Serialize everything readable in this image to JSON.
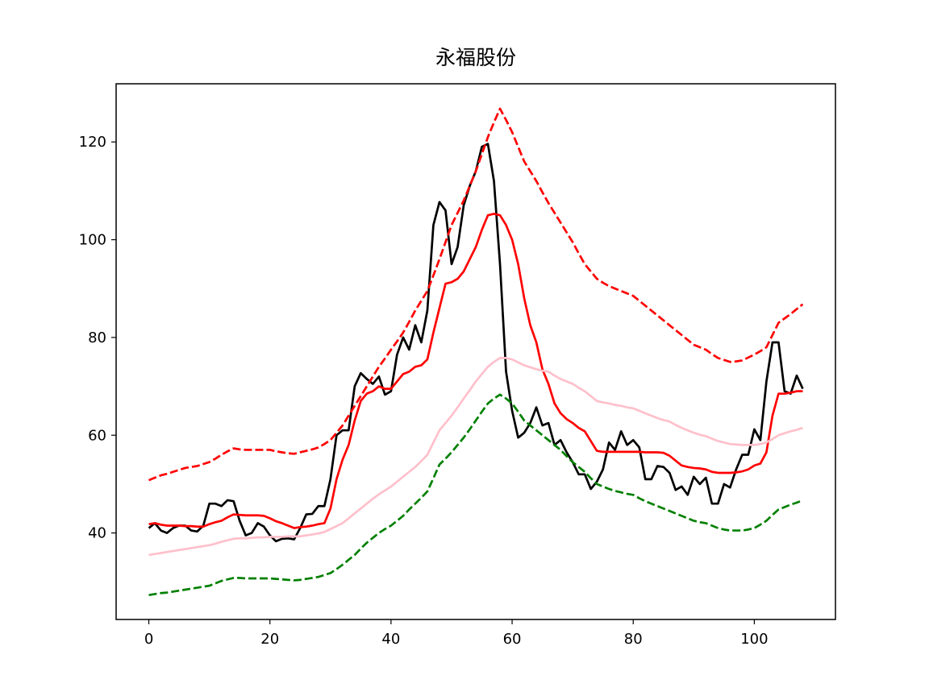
{
  "chart_data": {
    "type": "line",
    "title": "永福股份",
    "x": [
      0,
      1,
      2,
      3,
      4,
      5,
      6,
      7,
      8,
      9,
      10,
      11,
      12,
      13,
      14,
      15,
      16,
      17,
      18,
      19,
      20,
      21,
      22,
      23,
      24,
      25,
      26,
      27,
      28,
      29,
      30,
      31,
      32,
      33,
      34,
      35,
      36,
      37,
      38,
      39,
      40,
      41,
      42,
      43,
      44,
      45,
      46,
      47,
      48,
      49,
      50,
      51,
      52,
      53,
      54,
      55,
      56,
      57,
      58,
      59,
      60,
      61,
      62,
      63,
      64,
      65,
      66,
      67,
      68,
      69,
      70,
      71,
      72,
      73,
      74,
      75,
      76,
      77,
      78,
      79,
      80,
      81,
      82,
      83,
      84,
      85,
      86,
      87,
      88,
      89,
      90,
      91,
      92,
      93,
      94,
      95,
      96,
      97,
      98,
      99,
      100,
      101,
      102,
      103,
      104,
      105,
      106,
      107,
      108
    ],
    "xlim": [
      -5.4,
      113.4
    ],
    "xticks": [
      0,
      20,
      40,
      60,
      80,
      100
    ],
    "ylim": [
      22.3,
      131.9
    ],
    "yticks": [
      40,
      60,
      80,
      100,
      120
    ],
    "series": [
      {
        "color": "#000000",
        "dash": "solid",
        "values": [
          41,
          42,
          40.5,
          40,
          41,
          41.5,
          41.5,
          40.5,
          40.3,
          41.5,
          46,
          46,
          45.5,
          46.7,
          46.5,
          42.5,
          39.5,
          40,
          42,
          41.3,
          39.5,
          38.3,
          38.8,
          38.9,
          38.7,
          41,
          43.8,
          43.9,
          45.5,
          45.5,
          51,
          60,
          61,
          61,
          70,
          72.7,
          71.5,
          70.5,
          72,
          68.3,
          69,
          76.5,
          80,
          77.5,
          82.5,
          79,
          85.5,
          103,
          107.7,
          106,
          95,
          98.5,
          107,
          111,
          114,
          119,
          119.6,
          112,
          95,
          73,
          65,
          59.5,
          60.5,
          62.5,
          65.7,
          62,
          62.5,
          58,
          59,
          56.5,
          54.5,
          52,
          52,
          49,
          50.5,
          53,
          58.5,
          57,
          60.8,
          58,
          59,
          57.5,
          51,
          51,
          53.7,
          53.5,
          52.3,
          48.8,
          49.5,
          47.8,
          51.5,
          50,
          51.3,
          46,
          46,
          50,
          49.3,
          53,
          56,
          56,
          61.2,
          59,
          71,
          79,
          79,
          69,
          68.5,
          72.2,
          69.5
        ]
      },
      {
        "color": "#ff0000",
        "dash": "solid",
        "values": [
          41.8,
          42,
          41.7,
          41.5,
          41.5,
          41.5,
          41.4,
          41.4,
          41.3,
          41.3,
          41.8,
          42.2,
          42.5,
          43.2,
          43.8,
          43.7,
          43.6,
          43.6,
          43.6,
          43.5,
          43,
          42.4,
          42,
          41.5,
          41,
          41.2,
          41.3,
          41.5,
          41.8,
          42,
          45,
          51,
          55,
          58,
          63,
          67,
          68.5,
          69,
          70,
          69.5,
          69.5,
          71,
          72.5,
          73,
          74,
          74.3,
          75.5,
          81,
          86,
          91,
          91.3,
          92,
          93.5,
          96,
          98.5,
          102,
          105,
          105.3,
          105,
          103,
          100,
          95,
          88,
          82.5,
          79,
          73.5,
          70.5,
          66.5,
          64.5,
          63.3,
          62.5,
          61.5,
          60.8,
          58.8,
          56.8,
          56.6,
          56.6,
          56.6,
          56.6,
          56.6,
          56.6,
          56.6,
          56.5,
          56.5,
          56.5,
          56.4,
          55.8,
          54.8,
          53.8,
          53.5,
          53.3,
          53.2,
          53,
          52.5,
          52.3,
          52.3,
          52.3,
          52.4,
          52.6,
          53,
          53.8,
          54.2,
          56.5,
          64,
          68.5,
          68.5,
          68.7,
          69,
          69
        ]
      },
      {
        "color": "#ff0000",
        "dash": "dashed",
        "values": [
          50.8,
          51.3,
          51.8,
          52.1,
          52.5,
          52.9,
          53.3,
          53.5,
          53.7,
          54.1,
          54.5,
          55.2,
          56,
          56.7,
          57.3,
          57.1,
          57,
          57,
          57,
          57,
          57,
          56.7,
          56.5,
          56.3,
          56.2,
          56.5,
          56.8,
          57.1,
          57.5,
          58.2,
          59,
          60.5,
          62,
          64,
          66,
          68,
          70,
          72,
          74,
          75.7,
          77.5,
          79.2,
          81,
          83.2,
          85.5,
          87.5,
          89.5,
          92.7,
          96,
          99.5,
          103,
          105.5,
          108,
          111,
          114,
          117.5,
          121,
          124,
          126.8,
          124.5,
          122,
          119,
          116,
          114,
          112,
          109.7,
          107.5,
          105.5,
          103.5,
          101.5,
          99.5,
          97.2,
          95,
          93.5,
          92,
          91.2,
          90.5,
          90,
          89.5,
          89,
          88.5,
          87.5,
          86.5,
          85.5,
          84.5,
          83.5,
          82.5,
          81.5,
          80.5,
          79.5,
          78.5,
          78,
          77.5,
          76.6,
          75.8,
          75.4,
          75,
          75.1,
          75.3,
          75.9,
          76.5,
          77.2,
          78,
          80.5,
          83,
          83.9,
          84.8,
          85.8,
          86.8
        ]
      },
      {
        "color": "#ffc0cb",
        "dash": "solid",
        "values": [
          35.5,
          35.7,
          35.9,
          36.1,
          36.3,
          36.5,
          36.7,
          36.9,
          37.1,
          37.3,
          37.5,
          37.8,
          38.2,
          38.5,
          38.8,
          38.9,
          38.9,
          39,
          39.1,
          39.1,
          39.2,
          39.2,
          39.2,
          39.3,
          39.3,
          39.3,
          39.5,
          39.7,
          39.9,
          40.2,
          40.8,
          41.4,
          42,
          43,
          44,
          45,
          46,
          47,
          47.9,
          48.7,
          49.5,
          50.5,
          51.5,
          52.5,
          53.5,
          54.7,
          56,
          58.5,
          61,
          62.5,
          64,
          65.7,
          67.5,
          69.2,
          71,
          72.5,
          74,
          75,
          75.8,
          75.8,
          75.5,
          74.9,
          74.3,
          73.9,
          73.5,
          73.2,
          73,
          72.2,
          71.5,
          71,
          70.5,
          69.7,
          69,
          68,
          67,
          66.7,
          66.5,
          66.2,
          66,
          65.7,
          65.5,
          65,
          64.5,
          64,
          63.5,
          63.1,
          62.8,
          62.1,
          61.5,
          61,
          60.5,
          60.1,
          59.8,
          59.3,
          58.8,
          58.5,
          58.2,
          58.1,
          58,
          58,
          58,
          58.2,
          58.5,
          59.2,
          60,
          60.4,
          60.8,
          61.1,
          61.5
        ]
      },
      {
        "color": "#008000",
        "dash": "dashed",
        "values": [
          27.3,
          27.5,
          27.7,
          27.8,
          28,
          28.2,
          28.4,
          28.6,
          28.8,
          29,
          29.2,
          29.7,
          30.2,
          30.5,
          30.8,
          30.8,
          30.7,
          30.7,
          30.7,
          30.7,
          30.7,
          30.6,
          30.5,
          30.4,
          30.3,
          30.4,
          30.6,
          30.8,
          31,
          31.4,
          31.8,
          32.6,
          33.5,
          34.5,
          35.5,
          36.8,
          38,
          39,
          40,
          40.8,
          41.5,
          42.5,
          43.5,
          44.8,
          46,
          47.2,
          48.5,
          51.2,
          54,
          55.2,
          56.5,
          58,
          59.5,
          61.2,
          63,
          64.8,
          66.5,
          67.5,
          68.3,
          67.5,
          66.5,
          64.8,
          63,
          62,
          61,
          60,
          59,
          58,
          57,
          55.7,
          54.5,
          53.5,
          52.5,
          51.2,
          50,
          49.5,
          49,
          48.6,
          48.3,
          48,
          47.8,
          47.1,
          46.5,
          46,
          45.5,
          45,
          44.5,
          44,
          43.5,
          43,
          42.5,
          42.2,
          42,
          41.5,
          41,
          40.7,
          40.5,
          40.5,
          40.5,
          40.7,
          41,
          41.7,
          42.5,
          43.7,
          44.8,
          45.3,
          45.8,
          46.2,
          46.7
        ]
      }
    ]
  }
}
